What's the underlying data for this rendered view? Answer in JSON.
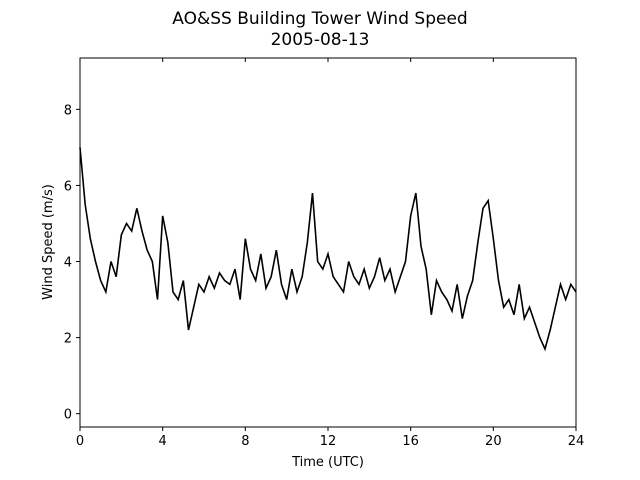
{
  "chart_data": {
    "type": "line",
    "title": "AO&SS Building Tower Wind Speed",
    "subtitle": "2005-08-13",
    "xlabel": "Time (UTC)",
    "ylabel": "Wind Speed (m/s)",
    "xlim": [
      0,
      24
    ],
    "xticks": [
      0,
      4,
      8,
      12,
      16,
      20,
      24
    ],
    "ylim": [
      -0.35,
      9.35
    ],
    "yticks": [
      0,
      2,
      4,
      6,
      8
    ],
    "grid": false,
    "x": [
      0,
      0.25,
      0.5,
      0.75,
      1,
      1.25,
      1.5,
      1.75,
      2,
      2.25,
      2.5,
      2.75,
      3,
      3.25,
      3.5,
      3.75,
      4,
      4.25,
      4.5,
      4.75,
      5,
      5.25,
      5.5,
      5.75,
      6,
      6.25,
      6.5,
      6.75,
      7,
      7.25,
      7.5,
      7.75,
      8,
      8.25,
      8.5,
      8.75,
      9,
      9.25,
      9.5,
      9.75,
      10,
      10.25,
      10.5,
      10.75,
      11,
      11.25,
      11.5,
      11.75,
      12,
      12.25,
      12.5,
      12.75,
      13,
      13.25,
      13.5,
      13.75,
      14,
      14.25,
      14.5,
      14.75,
      15,
      15.25,
      15.5,
      15.75,
      16,
      16.25,
      16.5,
      16.75,
      17,
      17.25,
      17.5,
      17.75,
      18,
      18.25,
      18.5,
      18.75,
      19,
      19.25,
      19.5,
      19.75,
      20,
      20.25,
      20.5,
      20.75,
      21,
      21.25,
      21.5,
      21.75,
      22,
      22.25,
      22.5,
      22.75,
      23,
      23.25,
      23.5,
      23.75,
      24
    ],
    "series": [
      {
        "name": "Wind Speed",
        "color": "#000000",
        "values": [
          7.0,
          5.5,
          4.6,
          4.0,
          3.5,
          3.2,
          4.0,
          3.6,
          4.7,
          5.0,
          4.8,
          5.4,
          4.8,
          4.3,
          4.0,
          3.0,
          5.2,
          4.5,
          3.2,
          3.0,
          3.5,
          2.2,
          2.8,
          3.4,
          3.2,
          3.6,
          3.3,
          3.7,
          3.5,
          3.4,
          3.8,
          3.0,
          4.6,
          3.8,
          3.5,
          4.2,
          3.3,
          3.6,
          4.3,
          3.4,
          3.0,
          3.8,
          3.2,
          3.6,
          4.5,
          5.8,
          4.0,
          3.8,
          4.2,
          3.6,
          3.4,
          3.2,
          4.0,
          3.6,
          3.4,
          3.8,
          3.3,
          3.6,
          4.1,
          3.5,
          3.8,
          3.2,
          3.6,
          4.0,
          5.2,
          5.8,
          4.4,
          3.8,
          2.6,
          3.5,
          3.2,
          3.0,
          2.7,
          3.4,
          2.5,
          3.1,
          3.5,
          4.5,
          5.4,
          5.6,
          4.6,
          3.5,
          2.8,
          3.0,
          2.6,
          3.4,
          2.5,
          2.8,
          2.4,
          2.0,
          1.7,
          2.2,
          2.8,
          3.4,
          3.0,
          3.4,
          3.2
        ]
      }
    ]
  }
}
